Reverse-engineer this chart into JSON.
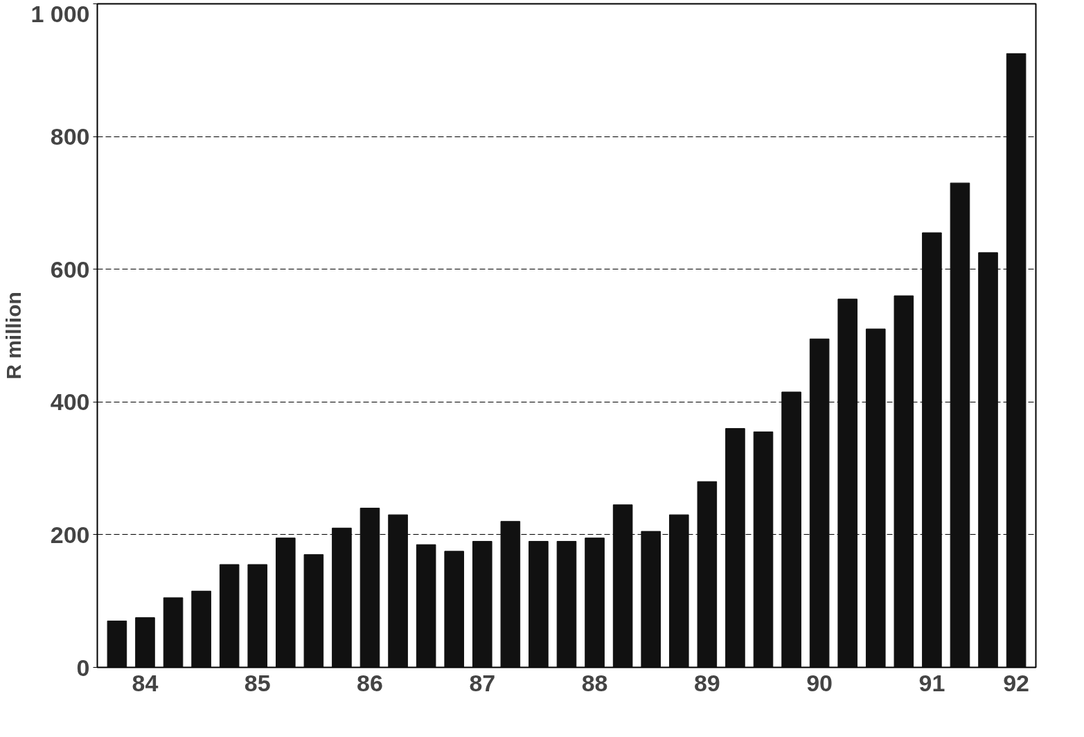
{
  "chart_data": {
    "type": "bar",
    "ylabel": "R million",
    "color": "#111111",
    "categories": [
      null,
      "84",
      null,
      null,
      null,
      "85",
      null,
      null,
      null,
      "86",
      null,
      null,
      null,
      "87",
      null,
      null,
      null,
      "88",
      null,
      null,
      null,
      "89",
      null,
      null,
      null,
      "90",
      null,
      null,
      null,
      "91",
      null,
      null,
      "92"
    ],
    "values": [
      70,
      75,
      105,
      115,
      155,
      155,
      195,
      170,
      210,
      240,
      230,
      185,
      175,
      190,
      220,
      190,
      190,
      195,
      245,
      205,
      230,
      280,
      360,
      355,
      415,
      495,
      555,
      510,
      560,
      655,
      730,
      625,
      925
    ],
    "ylim": [
      0,
      1000
    ],
    "yticks": [
      0,
      200,
      400,
      600,
      800,
      {
        "value": 1000,
        "label": "1 000"
      }
    ],
    "grid": "y",
    "line_style": "dashed"
  }
}
